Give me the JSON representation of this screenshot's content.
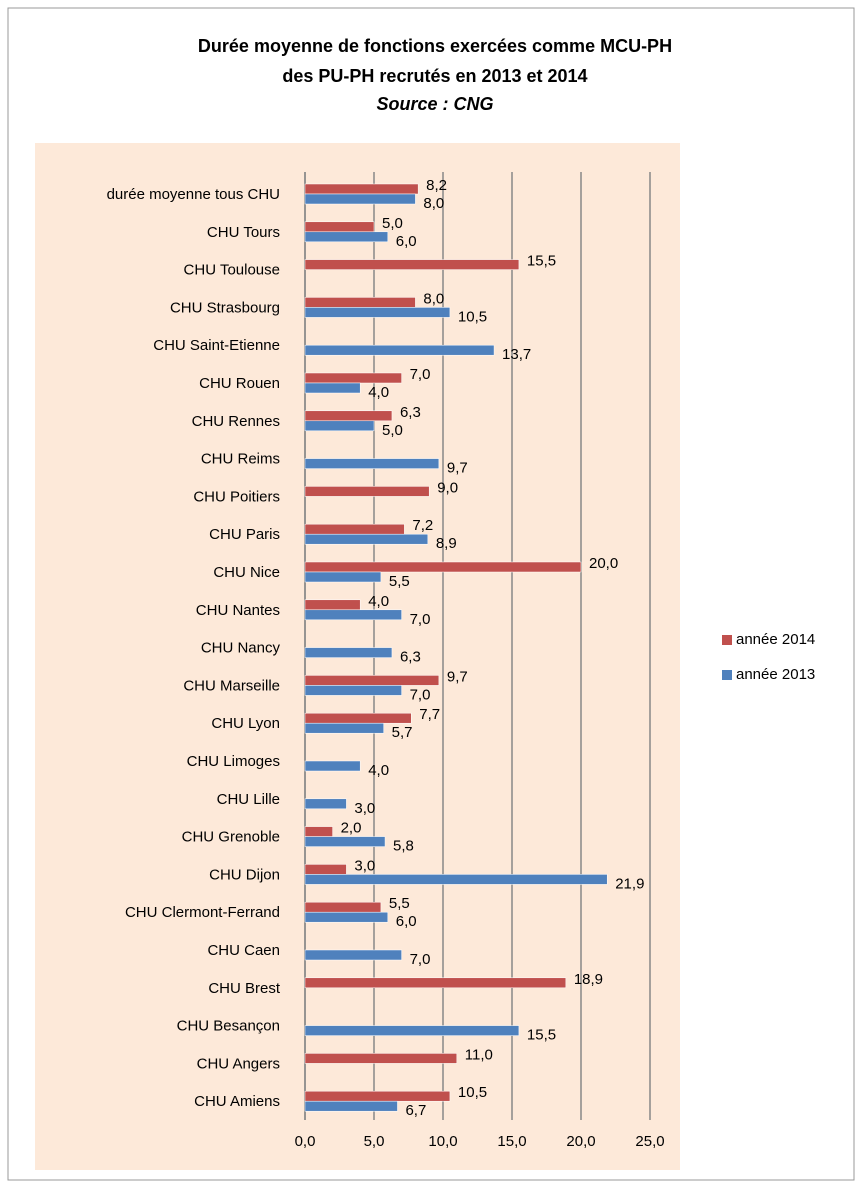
{
  "chart_data": {
    "type": "barh",
    "title": "Durée moyenne de fonctions exercées comme MCU-PH",
    "subtitle": "des PU-PH recrutés en  2013 et 2014",
    "source": "Source : CNG",
    "categories": [
      "durée moyenne tous CHU",
      "CHU Tours",
      "CHU Toulouse",
      "CHU Strasbourg",
      "CHU Saint-Etienne",
      "CHU Rouen",
      "CHU Rennes",
      "CHU Reims",
      "CHU Poitiers",
      "CHU Paris",
      "CHU Nice",
      "CHU Nantes",
      "CHU Nancy",
      "CHU Marseille",
      "CHU Lyon",
      "CHU Limoges",
      "CHU Lille",
      "CHU Grenoble",
      "CHU Dijon",
      "CHU Clermont-Ferrand",
      "CHU Caen",
      "CHU Brest",
      "CHU Besançon",
      "CHU Angers",
      "CHU Amiens"
    ],
    "series": [
      {
        "name": "année 2014",
        "color": "#c0504d",
        "values": [
          8.2,
          5.0,
          15.5,
          8.0,
          null,
          7.0,
          6.3,
          null,
          9.0,
          7.2,
          20.0,
          4.0,
          null,
          9.7,
          7.7,
          null,
          null,
          2.0,
          3.0,
          5.5,
          null,
          18.9,
          null,
          11.0,
          10.5
        ],
        "value_labels": [
          "8,2",
          "5,0",
          "15,5",
          "8,0",
          null,
          "7,0",
          "6,3",
          null,
          "9,0",
          "7,2",
          "20,0",
          "4,0",
          null,
          "9,7",
          "7,7",
          null,
          null,
          "2,0",
          "3,0",
          "5,5",
          null,
          "18,9",
          null,
          "11,0",
          "10,5"
        ]
      },
      {
        "name": "année 2013",
        "color": "#4f81bd",
        "values": [
          8.0,
          6.0,
          null,
          10.5,
          13.7,
          4.0,
          5.0,
          9.7,
          null,
          8.9,
          5.5,
          7.0,
          6.3,
          7.0,
          5.7,
          4.0,
          3.0,
          5.8,
          21.9,
          6.0,
          7.0,
          null,
          15.5,
          null,
          6.7
        ],
        "value_labels": [
          "8,0",
          "6,0",
          null,
          "10,5",
          "13,7",
          "4,0",
          "5,0",
          "9,7",
          null,
          "8,9",
          "5,5",
          "7,0",
          "6,3",
          "7,0",
          "5,7",
          "4,0",
          "3,0",
          "5,8",
          "21,9",
          "6,0",
          "7,0",
          null,
          "15,5",
          null,
          "6,7"
        ]
      }
    ],
    "xlim": [
      0,
      25
    ],
    "xticks": [
      {
        "value": 0,
        "label": "0,0"
      },
      {
        "value": 5,
        "label": "5,0"
      },
      {
        "value": 10,
        "label": "10,0"
      },
      {
        "value": 15,
        "label": "15,0"
      },
      {
        "value": 20,
        "label": "20,0"
      },
      {
        "value": 25,
        "label": "25,0"
      }
    ],
    "grid": true,
    "legend": "right"
  }
}
